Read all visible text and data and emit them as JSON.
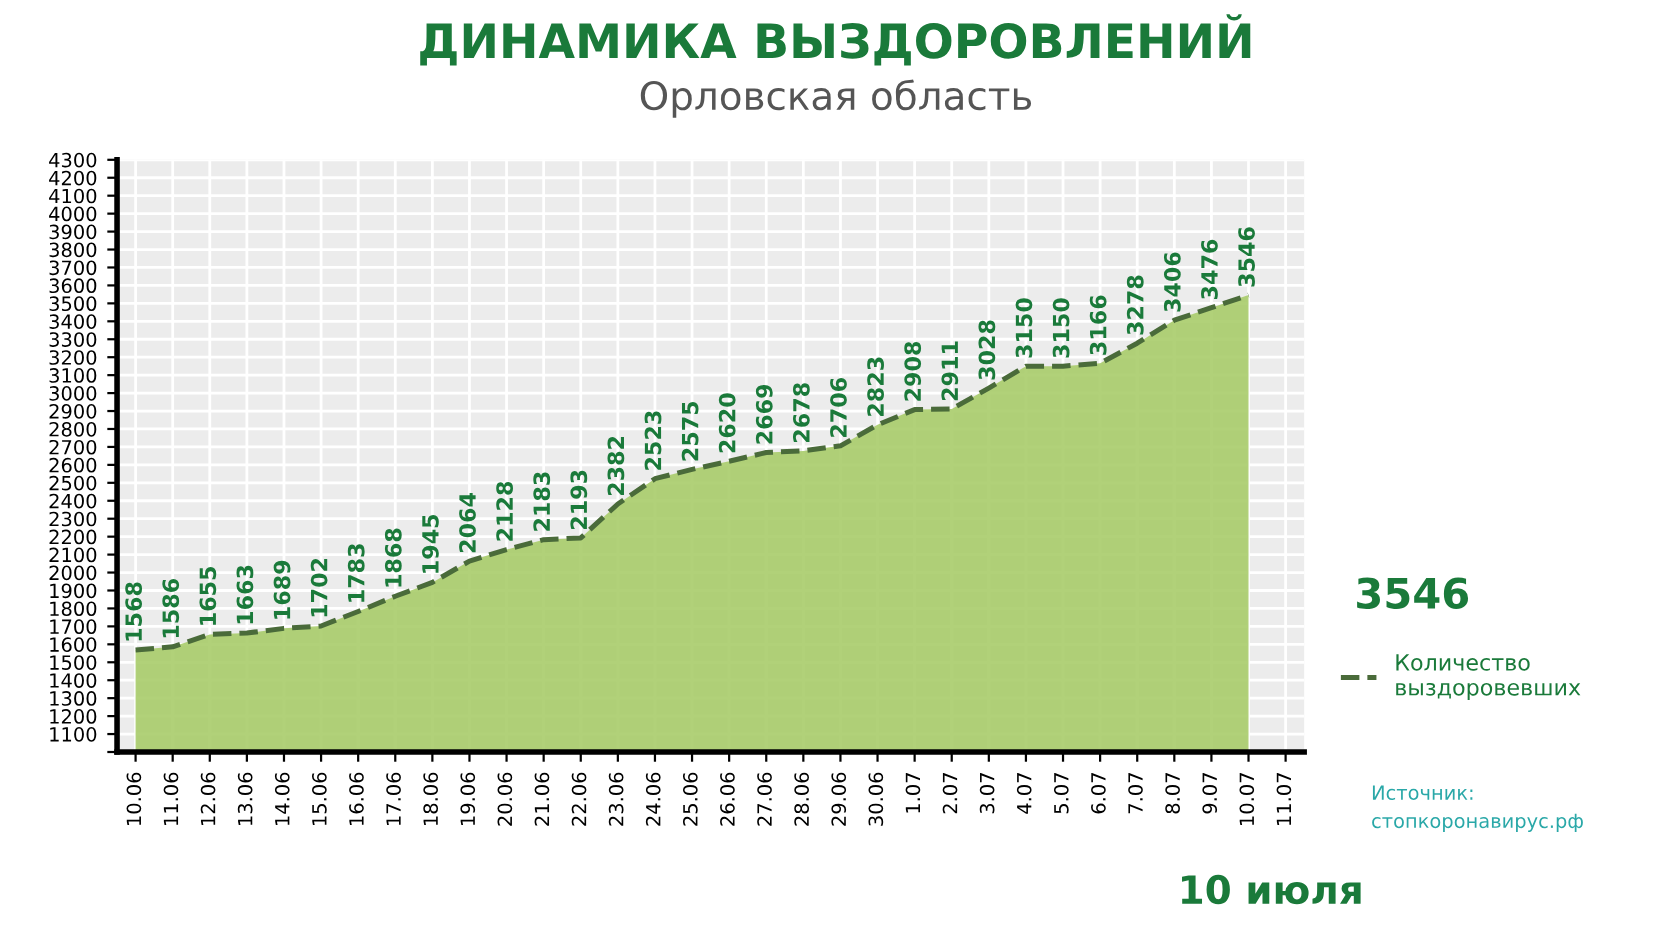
{
  "chart_data": {
    "type": "area",
    "title": "ДИНАМИКА ВЫЗДОРОВЛЕНИЙ",
    "subtitle": "Орловская область",
    "categories": [
      "10.06",
      "11.06",
      "12.06",
      "13.06",
      "14.06",
      "15.06",
      "16.06",
      "17.06",
      "18.06",
      "19.06",
      "20.06",
      "21.06",
      "22.06",
      "23.06",
      "24.06",
      "25.06",
      "26.06",
      "27.06",
      "28.06",
      "29.06",
      "30.06",
      "1.07",
      "2.07",
      "3.07",
      "4.07",
      "5.07",
      "6.07",
      "7.07",
      "8.07",
      "9.07",
      "10.07",
      "11.07"
    ],
    "series": [
      {
        "name": "Количество\nвыздоровевших",
        "color": "#a9cc6a",
        "values": [
          1568,
          1586,
          1655,
          1663,
          1689,
          1702,
          1783,
          1868,
          1945,
          2064,
          2128,
          2183,
          2193,
          2382,
          2523,
          2575,
          2620,
          2669,
          2678,
          2706,
          2823,
          2908,
          2911,
          3028,
          3150,
          3150,
          3166,
          3278,
          3406,
          3476,
          3546,
          null
        ]
      }
    ],
    "ylim": [
      1000,
      4300
    ],
    "yticks": [
      {
        "value": 1000,
        "label": null
      },
      1100,
      1200,
      1300,
      1400,
      1500,
      1600,
      1700,
      1800,
      1900,
      2000,
      2100,
      2200,
      2300,
      2400,
      2500,
      2600,
      2700,
      2800,
      2900,
      3000,
      3100,
      3200,
      3300,
      3400,
      3500,
      3600,
      3700,
      3800,
      3900,
      4000,
      4100,
      4200,
      4300
    ],
    "grid": true,
    "data_labels": true,
    "line_style": "dashed",
    "legend": "right",
    "annotations": [
      "3546",
      "10 июля",
      "Источник:",
      "стопкоронавирус.рф"
    ]
  }
}
